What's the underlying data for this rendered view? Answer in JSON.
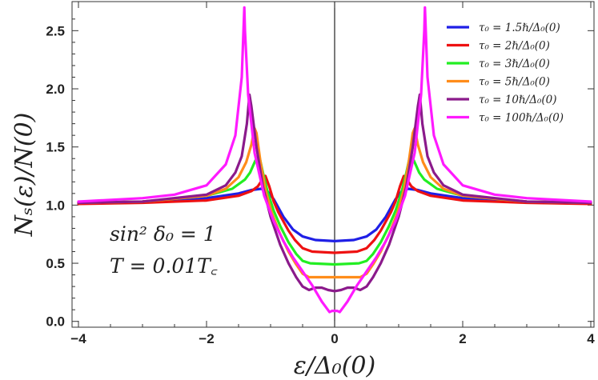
{
  "chart_data": {
    "type": "line",
    "title": "",
    "xlabel": "ε/Δ₀(0)",
    "ylabel": "Nₛ(ε)/N(0)",
    "xlim": [
      -4.1,
      4.05
    ],
    "ylim": [
      -0.05,
      2.75
    ],
    "x_ticks": [
      -4,
      -2,
      0,
      2,
      4
    ],
    "x_tick_labels": [
      "−4",
      "−2",
      "0",
      "2",
      "4"
    ],
    "y_ticks": [
      0.0,
      0.5,
      1.0,
      1.5,
      2.0,
      2.5
    ],
    "y_tick_labels": [
      "0.0",
      "0.5",
      "1.0",
      "1.5",
      "2.0",
      "2.5"
    ],
    "legend_position": "top-right",
    "annotations": [
      "sin² δ₀ = 1",
      "T = 0.01T꜀"
    ],
    "series": [
      {
        "name": "τ₀ = 1.5ℏ/Δ₀(0)",
        "color": "#1f1fe6",
        "x": [
          0,
          0.3,
          0.5,
          0.65,
          0.8,
          0.95,
          1.05,
          1.15,
          1.3,
          1.5,
          2.0,
          3.0,
          4.0
        ],
        "y": [
          0.69,
          0.7,
          0.73,
          0.79,
          0.9,
          1.05,
          1.12,
          1.14,
          1.13,
          1.1,
          1.06,
          1.03,
          1.02
        ]
      },
      {
        "name": "τ₀ = 2ℏ/Δ₀(0)",
        "color": "#ee1111",
        "x": [
          0,
          0.35,
          0.5,
          0.62,
          0.72,
          0.8,
          0.88,
          0.95,
          1.02,
          1.08,
          1.14,
          1.2,
          1.3,
          1.5,
          2.0,
          3.0,
          4.0
        ],
        "y": [
          0.59,
          0.6,
          0.63,
          0.7,
          0.78,
          0.86,
          0.94,
          1.03,
          1.16,
          1.25,
          1.21,
          1.16,
          1.12,
          1.08,
          1.04,
          1.02,
          1.01
        ]
      },
      {
        "name": "τ₀ = 3ℏ/Δ₀(0)",
        "color": "#22ee22",
        "x": [
          0,
          0.38,
          0.5,
          0.6,
          0.72,
          0.85,
          0.95,
          1.05,
          1.12,
          1.18,
          1.24,
          1.32,
          1.4,
          1.6,
          2.0,
          3.0,
          4.0
        ],
        "y": [
          0.49,
          0.5,
          0.52,
          0.58,
          0.68,
          0.82,
          0.95,
          1.12,
          1.28,
          1.43,
          1.38,
          1.28,
          1.22,
          1.14,
          1.08,
          1.03,
          1.02
        ]
      },
      {
        "name": "τ₀ = 5ℏ/Δ₀(0)",
        "color": "#ff8c1a",
        "x": [
          0,
          0.4,
          0.5,
          0.6,
          0.72,
          0.85,
          0.98,
          1.08,
          1.16,
          1.22,
          1.25,
          1.3,
          1.38,
          1.5,
          1.7,
          2.0,
          3.0,
          4.0
        ],
        "y": [
          0.38,
          0.38,
          0.41,
          0.49,
          0.6,
          0.75,
          0.93,
          1.13,
          1.38,
          1.62,
          1.66,
          1.52,
          1.37,
          1.24,
          1.14,
          1.08,
          1.03,
          1.02
        ]
      },
      {
        "name": "τ₀ = 10ℏ/Δ₀(0)",
        "color": "#8b1a8b",
        "x": [
          0,
          0.1,
          0.2,
          0.3,
          0.4,
          0.5,
          0.6,
          0.72,
          0.85,
          1.0,
          1.12,
          1.22,
          1.3,
          1.33,
          1.37,
          1.45,
          1.55,
          1.7,
          2.0,
          3.0,
          4.0
        ],
        "y": [
          0.26,
          0.27,
          0.29,
          0.29,
          0.27,
          0.3,
          0.38,
          0.5,
          0.66,
          0.9,
          1.16,
          1.5,
          1.85,
          1.95,
          1.7,
          1.42,
          1.28,
          1.17,
          1.09,
          1.03,
          1.02
        ]
      },
      {
        "name": "τ₀ = 100ℏ/Δ₀(0)",
        "color": "#ff1aff",
        "x": [
          0,
          0.04,
          0.08,
          0.2,
          0.35,
          0.5,
          0.65,
          0.8,
          0.95,
          1.1,
          1.25,
          1.35,
          1.4,
          1.41,
          1.45,
          1.55,
          1.7,
          2.0,
          2.5,
          3.0,
          4.0
        ],
        "y": [
          0.09,
          0.09,
          0.08,
          0.17,
          0.31,
          0.43,
          0.55,
          0.69,
          0.86,
          1.08,
          1.45,
          1.95,
          2.5,
          2.7,
          2.1,
          1.6,
          1.35,
          1.17,
          1.09,
          1.06,
          1.03
        ]
      }
    ]
  }
}
